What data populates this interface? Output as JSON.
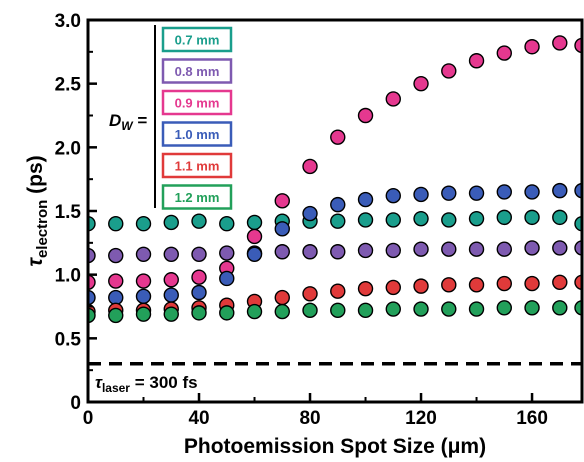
{
  "chart_data": {
    "type": "scatter",
    "title": "",
    "xlabel": "Photoemission Spot Size (μm)",
    "ylabel_main": "τ",
    "ylabel_sub": "electron",
    "ylabel_unit": " (ps)",
    "xlim": [
      0,
      178
    ],
    "ylim": [
      0,
      3.0
    ],
    "xticks": [
      0,
      40,
      80,
      120,
      160
    ],
    "yticks": [
      0.0,
      0.5,
      1.0,
      1.5,
      2.0,
      2.5,
      3.0
    ],
    "ytick_labels": [
      "0",
      "0.5",
      "1.0",
      "1.5",
      "2.0",
      "2.5",
      "3.0"
    ],
    "grid": false,
    "legend_position": "top-left",
    "legend_group_label": "D",
    "legend_group_sub": "W",
    "legend_group_eq": " =",
    "reference_line": {
      "y": 0.3,
      "style": "dashed",
      "label_main": "τ",
      "label_sub": "laser",
      "label_rest": " = 300 fs"
    },
    "series": [
      {
        "name": "0.7 mm",
        "color": "#1a9e8c",
        "points": [
          [
            0,
            1.4
          ],
          [
            10,
            1.4
          ],
          [
            20,
            1.4
          ],
          [
            30,
            1.41
          ],
          [
            40,
            1.42
          ],
          [
            50,
            1.4
          ],
          [
            60,
            1.41
          ],
          [
            70,
            1.42
          ],
          [
            80,
            1.42
          ],
          [
            90,
            1.42
          ],
          [
            100,
            1.43
          ],
          [
            110,
            1.43
          ],
          [
            120,
            1.44
          ],
          [
            130,
            1.43
          ],
          [
            140,
            1.44
          ],
          [
            150,
            1.45
          ],
          [
            160,
            1.45
          ],
          [
            170,
            1.45
          ],
          [
            178,
            1.4
          ]
        ]
      },
      {
        "name": "0.8 mm",
        "color": "#7e5ab0",
        "points": [
          [
            0,
            1.15
          ],
          [
            10,
            1.15
          ],
          [
            20,
            1.16
          ],
          [
            30,
            1.16
          ],
          [
            40,
            1.16
          ],
          [
            50,
            1.17
          ],
          [
            60,
            1.17
          ],
          [
            70,
            1.18
          ],
          [
            80,
            1.18
          ],
          [
            90,
            1.18
          ],
          [
            100,
            1.19
          ],
          [
            110,
            1.19
          ],
          [
            120,
            1.2
          ],
          [
            130,
            1.2
          ],
          [
            140,
            1.2
          ],
          [
            150,
            1.2
          ],
          [
            160,
            1.21
          ],
          [
            170,
            1.21
          ],
          [
            178,
            1.21
          ]
        ]
      },
      {
        "name": "0.9 mm",
        "color": "#e5388f",
        "points": [
          [
            0,
            0.94
          ],
          [
            10,
            0.95
          ],
          [
            20,
            0.95
          ],
          [
            30,
            0.96
          ],
          [
            40,
            0.98
          ],
          [
            50,
            1.05
          ],
          [
            60,
            1.3
          ],
          [
            70,
            1.58
          ],
          [
            80,
            1.85
          ],
          [
            90,
            2.08
          ],
          [
            100,
            2.25
          ],
          [
            110,
            2.38
          ],
          [
            120,
            2.5
          ],
          [
            130,
            2.6
          ],
          [
            140,
            2.68
          ],
          [
            150,
            2.74
          ],
          [
            160,
            2.79
          ],
          [
            170,
            2.82
          ],
          [
            178,
            2.8
          ]
        ]
      },
      {
        "name": "1.0 mm",
        "color": "#3a5cb8",
        "points": [
          [
            0,
            0.82
          ],
          [
            10,
            0.82
          ],
          [
            20,
            0.83
          ],
          [
            30,
            0.84
          ],
          [
            40,
            0.86
          ],
          [
            50,
            0.97
          ],
          [
            60,
            1.16
          ],
          [
            70,
            1.36
          ],
          [
            80,
            1.48
          ],
          [
            90,
            1.55
          ],
          [
            100,
            1.59
          ],
          [
            110,
            1.62
          ],
          [
            120,
            1.63
          ],
          [
            130,
            1.64
          ],
          [
            140,
            1.64
          ],
          [
            150,
            1.65
          ],
          [
            160,
            1.65
          ],
          [
            170,
            1.66
          ],
          [
            178,
            1.66
          ]
        ]
      },
      {
        "name": "1.1 mm",
        "color": "#e03a3a",
        "points": [
          [
            0,
            0.71
          ],
          [
            10,
            0.72
          ],
          [
            20,
            0.72
          ],
          [
            30,
            0.73
          ],
          [
            40,
            0.74
          ],
          [
            50,
            0.76
          ],
          [
            60,
            0.79
          ],
          [
            70,
            0.82
          ],
          [
            80,
            0.85
          ],
          [
            90,
            0.87
          ],
          [
            100,
            0.89
          ],
          [
            110,
            0.9
          ],
          [
            120,
            0.91
          ],
          [
            130,
            0.92
          ],
          [
            140,
            0.92
          ],
          [
            150,
            0.93
          ],
          [
            160,
            0.93
          ],
          [
            170,
            0.94
          ],
          [
            178,
            0.94
          ]
        ]
      },
      {
        "name": "1.2 mm",
        "color": "#22a05a",
        "points": [
          [
            0,
            0.68
          ],
          [
            10,
            0.68
          ],
          [
            20,
            0.69
          ],
          [
            30,
            0.69
          ],
          [
            40,
            0.7
          ],
          [
            50,
            0.7
          ],
          [
            60,
            0.71
          ],
          [
            70,
            0.71
          ],
          [
            80,
            0.72
          ],
          [
            90,
            0.72
          ],
          [
            100,
            0.72
          ],
          [
            110,
            0.73
          ],
          [
            120,
            0.73
          ],
          [
            130,
            0.73
          ],
          [
            140,
            0.73
          ],
          [
            150,
            0.74
          ],
          [
            160,
            0.74
          ],
          [
            170,
            0.74
          ],
          [
            178,
            0.74
          ]
        ]
      }
    ]
  }
}
